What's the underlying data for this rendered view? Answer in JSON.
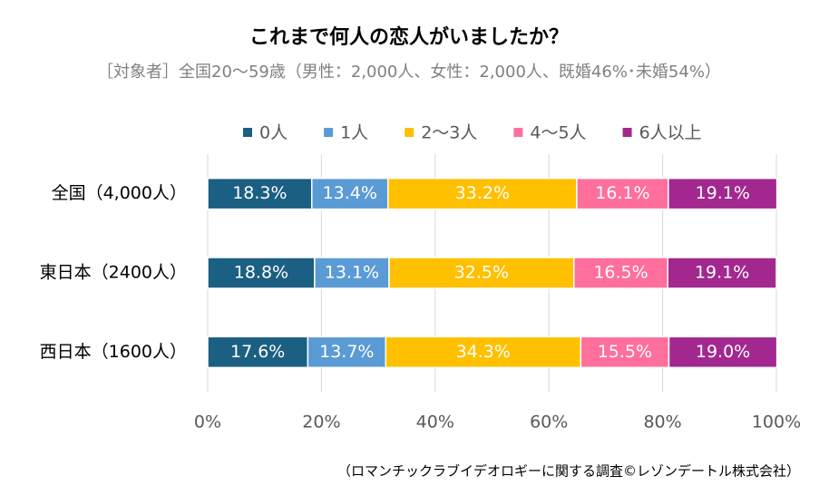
{
  "chart_data": {
    "type": "stacked-bar-horizontal",
    "title": "これまで何人の恋人がいましたか？",
    "subtitle": "［対象者］全国20～59歳（男性：2,000人、女性：2,000人、既婚46%･未婚54%）",
    "note": "（ロマンチックラブイデオロギーに関する調査©レゾンデートル株式会社）",
    "categories": [
      "全国（4,000人）",
      "東日本（2400人）",
      "西日本（1600人）"
    ],
    "series": [
      {
        "name": "0人",
        "color": "#1b5f82",
        "values": [
          18.3,
          18.8,
          17.6
        ],
        "value_labels": [
          "18.3%",
          "18.8%",
          "17.6%"
        ]
      },
      {
        "name": "1人",
        "color": "#5b9bd5",
        "values": [
          13.4,
          13.1,
          13.7
        ],
        "value_labels": [
          "13.4%",
          "13.1%",
          "13.7%"
        ]
      },
      {
        "name": "2～3人",
        "color": "#ffc000",
        "values": [
          33.2,
          32.5,
          34.3
        ],
        "value_labels": [
          "33.2%",
          "32.5%",
          "34.3%"
        ]
      },
      {
        "name": "4～5人",
        "color": "#ff6f9c",
        "values": [
          16.1,
          16.5,
          15.5
        ],
        "value_labels": [
          "16.1%",
          "16.5%",
          "15.5%"
        ]
      },
      {
        "name": "6人以上",
        "color": "#a2288f",
        "values": [
          19.1,
          19.1,
          19.0
        ],
        "value_labels": [
          "19.1%",
          "19.1%",
          "19.0%"
        ]
      }
    ],
    "xlim": [
      0,
      100
    ],
    "xticks": [
      {
        "value": 0,
        "label": "0%"
      },
      {
        "value": 20,
        "label": "20%"
      },
      {
        "value": 40,
        "label": "40%"
      },
      {
        "value": 60,
        "label": "60%"
      },
      {
        "value": 80,
        "label": "80%"
      },
      {
        "value": 100,
        "label": "100%"
      }
    ],
    "grid": true,
    "legend": "top"
  }
}
